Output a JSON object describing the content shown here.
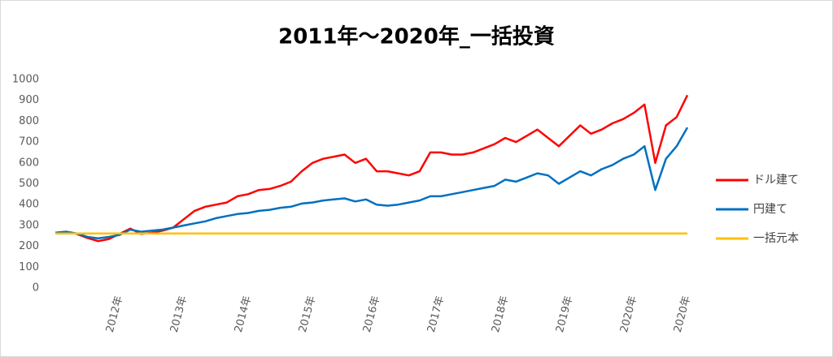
{
  "chart_data": {
    "type": "line",
    "title": "2011年～2020年_一括投資",
    "categories": [
      null,
      null,
      null,
      null,
      null,
      null,
      "2012年",
      null,
      null,
      null,
      null,
      null,
      "2013年",
      null,
      null,
      null,
      null,
      null,
      "2014年",
      null,
      null,
      null,
      null,
      null,
      "2015年",
      null,
      null,
      null,
      null,
      null,
      "2016年",
      null,
      null,
      null,
      null,
      null,
      "2017年",
      null,
      null,
      null,
      null,
      null,
      "2018年",
      null,
      null,
      null,
      null,
      null,
      "2019年",
      null,
      null,
      null,
      null,
      null,
      "2020年",
      null,
      null,
      null,
      null,
      "2020年"
    ],
    "series": [
      {
        "name": "ドル建て",
        "color": "#ff0000",
        "values": [
          265,
          270,
          260,
          240,
          225,
          235,
          260,
          285,
          260,
          265,
          275,
          290,
          330,
          370,
          390,
          400,
          410,
          440,
          450,
          470,
          475,
          490,
          510,
          560,
          600,
          620,
          630,
          640,
          600,
          620,
          560,
          560,
          550,
          540,
          560,
          650,
          650,
          640,
          640,
          650,
          670,
          690,
          720,
          700,
          730,
          760,
          720,
          680,
          730,
          780,
          740,
          760,
          790,
          810,
          840,
          880,
          600,
          780,
          820,
          925
        ]
      },
      {
        "name": "円建て",
        "color": "#0070c0",
        "values": [
          265,
          270,
          262,
          245,
          238,
          245,
          255,
          280,
          270,
          275,
          280,
          290,
          300,
          310,
          320,
          335,
          345,
          355,
          360,
          370,
          375,
          385,
          390,
          405,
          410,
          420,
          425,
          430,
          415,
          425,
          400,
          395,
          400,
          410,
          420,
          440,
          440,
          450,
          460,
          470,
          480,
          490,
          520,
          510,
          530,
          550,
          540,
          500,
          530,
          560,
          540,
          570,
          590,
          620,
          640,
          680,
          470,
          620,
          680,
          770
        ]
      },
      {
        "name": "一括元本",
        "color": "#ffc000",
        "values": [
          262,
          262,
          262,
          262,
          262,
          262,
          262,
          262,
          262,
          262,
          262,
          262,
          262,
          262,
          262,
          262,
          262,
          262,
          262,
          262,
          262,
          262,
          262,
          262,
          262,
          262,
          262,
          262,
          262,
          262,
          262,
          262,
          262,
          262,
          262,
          262,
          262,
          262,
          262,
          262,
          262,
          262,
          262,
          262,
          262,
          262,
          262,
          262,
          262,
          262,
          262,
          262,
          262,
          262,
          262,
          262,
          262,
          262,
          262,
          262
        ]
      }
    ],
    "ylim": [
      0,
      1000
    ],
    "yticks": [
      0,
      100,
      200,
      300,
      400,
      500,
      600,
      700,
      800,
      900,
      1000
    ],
    "grid": false,
    "legend": "right"
  }
}
